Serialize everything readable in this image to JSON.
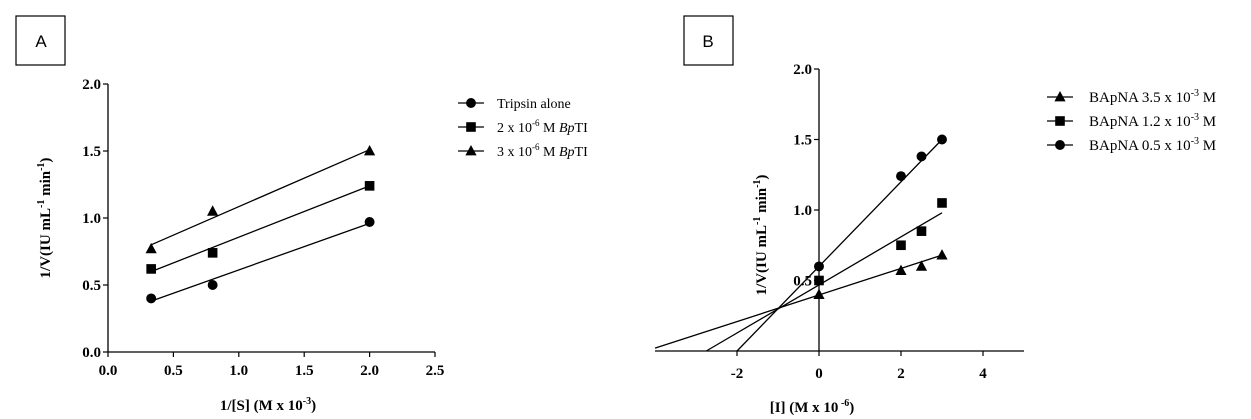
{
  "chart_data": [
    {
      "type": "scatter",
      "panel_label": "A",
      "xlabel": "1/[S] (M x 10",
      "xlabel_sup": "-3",
      "xlabel_end": ")",
      "ylabel": "1/V(IU mL",
      "ylabel_sup1": "-1",
      "ylabel_mid": " min",
      "ylabel_sup2": "-1",
      "ylabel_end": ")",
      "xlim": [
        0,
        2.5
      ],
      "ylim": [
        0,
        2
      ],
      "xticks": [
        "0.0",
        "0.5",
        "1.0",
        "1.5",
        "2.0",
        "2.5"
      ],
      "yticks": [
        "0.0",
        "0.5",
        "1.0",
        "1.5",
        "2.0"
      ],
      "grid": false,
      "legend_position": "right",
      "series": [
        {
          "name": "Tripsin alone",
          "legend_parts": [
            "Tripsin alone"
          ],
          "marker": "circle",
          "points": [
            [
              0.33,
              0.4
            ],
            [
              0.8,
              0.5
            ],
            [
              2.0,
              0.97
            ]
          ],
          "fit": [
            [
              0.33,
              0.38
            ],
            [
              2.0,
              0.96
            ]
          ]
        },
        {
          "name": "2 x 10-6 M BpTI",
          "legend_parts": [
            "2 x 10",
            "-6",
            " M ",
            "Bp",
            "TI"
          ],
          "marker": "square",
          "points": [
            [
              0.33,
              0.62
            ],
            [
              0.8,
              0.74
            ],
            [
              2.0,
              1.24
            ]
          ],
          "fit": [
            [
              0.33,
              0.6
            ],
            [
              2.0,
              1.24
            ]
          ]
        },
        {
          "name": "3 x 10-6 M BpTI",
          "legend_parts": [
            "3 x 10",
            "-6",
            " M ",
            "Bp",
            "TI"
          ],
          "marker": "triangle",
          "points": [
            [
              0.33,
              0.77
            ],
            [
              0.8,
              1.05
            ],
            [
              2.0,
              1.5
            ]
          ],
          "fit": [
            [
              0.33,
              0.8
            ],
            [
              2.0,
              1.51
            ]
          ]
        }
      ]
    },
    {
      "type": "scatter",
      "panel_label": "B",
      "xlabel": "[I] (M x 10",
      "xlabel_sup": " -6",
      "xlabel_end": ")",
      "ylabel": "1/V(IU mL",
      "ylabel_sup1": "-1",
      "ylabel_mid": " min",
      "ylabel_sup2": "-1",
      "ylabel_end": ")",
      "xlim": [
        -4,
        5
      ],
      "ylim": [
        0,
        2
      ],
      "xticks": [
        "-2",
        "0",
        "2",
        "4"
      ],
      "xtick_values": [
        -2,
        0,
        2,
        4
      ],
      "yticks": [
        "0.5",
        "1.0",
        "1.5",
        "2.0"
      ],
      "ytick_values": [
        0.5,
        1.0,
        1.5,
        2.0
      ],
      "grid": false,
      "legend_position": "right",
      "series": [
        {
          "name": "BApNA 3.5 x 10-3 M",
          "legend_parts": [
            "BApNA 3.5 x 10",
            "-3",
            " M"
          ],
          "marker": "triangle",
          "points": [
            [
              0,
              0.4
            ],
            [
              2,
              0.57
            ],
            [
              2.5,
              0.6
            ],
            [
              3,
              0.68
            ]
          ],
          "fit": [
            [
              -4,
              0.02
            ],
            [
              3,
              0.68
            ]
          ]
        },
        {
          "name": "BApNA 1.2 x 10-3 M",
          "legend_parts": [
            "BApNA 1.2 x 10",
            "-3",
            " M"
          ],
          "marker": "square",
          "points": [
            [
              0,
              0.5
            ],
            [
              2,
              0.75
            ],
            [
              2.5,
              0.85
            ],
            [
              3,
              1.05
            ]
          ],
          "fit": [
            [
              -2.75,
              0.0
            ],
            [
              3,
              0.98
            ]
          ]
        },
        {
          "name": "BApNA 0.5 x 10-3 M",
          "legend_parts": [
            "BApNA 0.5 x 10",
            "-3",
            " M"
          ],
          "marker": "circle",
          "points": [
            [
              0,
              0.6
            ],
            [
              2,
              1.24
            ],
            [
              2.5,
              1.38
            ],
            [
              3,
              1.5
            ]
          ],
          "fit": [
            [
              -2.0,
              0.0
            ],
            [
              3,
              1.5
            ]
          ]
        }
      ]
    }
  ]
}
